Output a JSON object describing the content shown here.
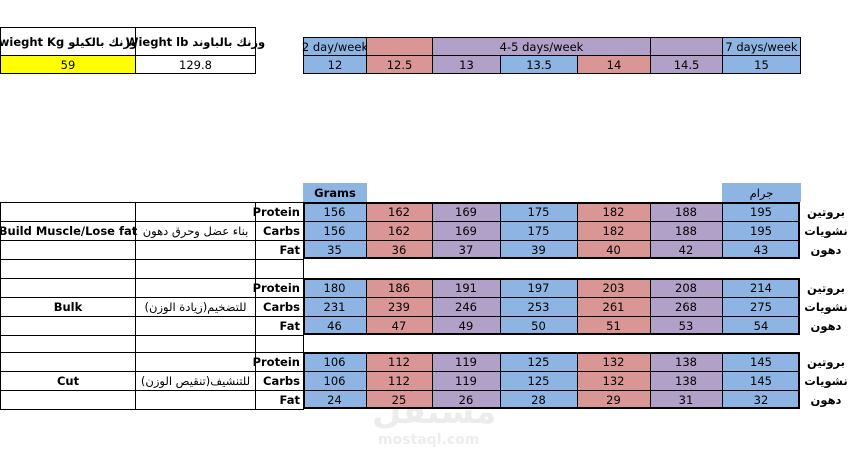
{
  "weight_table": {
    "headers": [
      "wieght Kg وزنك بالكيلو",
      "Wieght lb وزنك بالباوند"
    ],
    "values": [
      59,
      129.8
    ]
  },
  "frequency": {
    "labels": [
      "2 day/week",
      "4-5 days/week",
      "7 days/week"
    ],
    "multipliers": [
      12,
      12.5,
      13,
      13.5,
      14,
      14.5,
      15
    ]
  },
  "units": [
    "Grams",
    "جرام"
  ],
  "blocks": [
    {
      "label_en": "Build Muscle/Lose fat",
      "label_ar": "بناء عضل وحرق دهون",
      "rows": [
        {
          "name": "Protein",
          "name_ar": "بروتين",
          "values": [
            156,
            162,
            169,
            175,
            182,
            188,
            195
          ]
        },
        {
          "name": "Carbs",
          "name_ar": "نشويات",
          "values": [
            156,
            162,
            169,
            175,
            182,
            188,
            195
          ]
        },
        {
          "name": "Fat",
          "name_ar": "دهون",
          "values": [
            35,
            36,
            37,
            39,
            40,
            42,
            43
          ]
        }
      ]
    },
    {
      "label_en": "Bulk",
      "label_ar": "للتضخيم(زيادة الوزن)",
      "rows": [
        {
          "name": "Protein",
          "name_ar": "بروتين",
          "values": [
            180,
            186,
            191,
            197,
            203,
            208,
            214
          ]
        },
        {
          "name": "Carbs",
          "name_ar": "نشويات",
          "values": [
            231,
            239,
            246,
            253,
            261,
            268,
            275
          ]
        },
        {
          "name": "Fat",
          "name_ar": "دهون",
          "values": [
            46,
            47,
            49,
            50,
            51,
            53,
            54
          ]
        }
      ]
    },
    {
      "label_en": "Cut",
      "label_ar": "للتنشيف(تنقيص الوزن)",
      "rows": [
        {
          "name": "Protein",
          "name_ar": "بروتين",
          "values": [
            106,
            112,
            119,
            125,
            132,
            138,
            145
          ]
        },
        {
          "name": "Carbs",
          "name_ar": "نشويات",
          "values": [
            106,
            112,
            119,
            125,
            132,
            138,
            145
          ]
        },
        {
          "name": "Fat",
          "name_ar": "دهون",
          "values": [
            24,
            25,
            26,
            28,
            29,
            31,
            32
          ]
        }
      ]
    }
  ],
  "watermark": [
    "مستقل",
    "mostaql.com"
  ]
}
